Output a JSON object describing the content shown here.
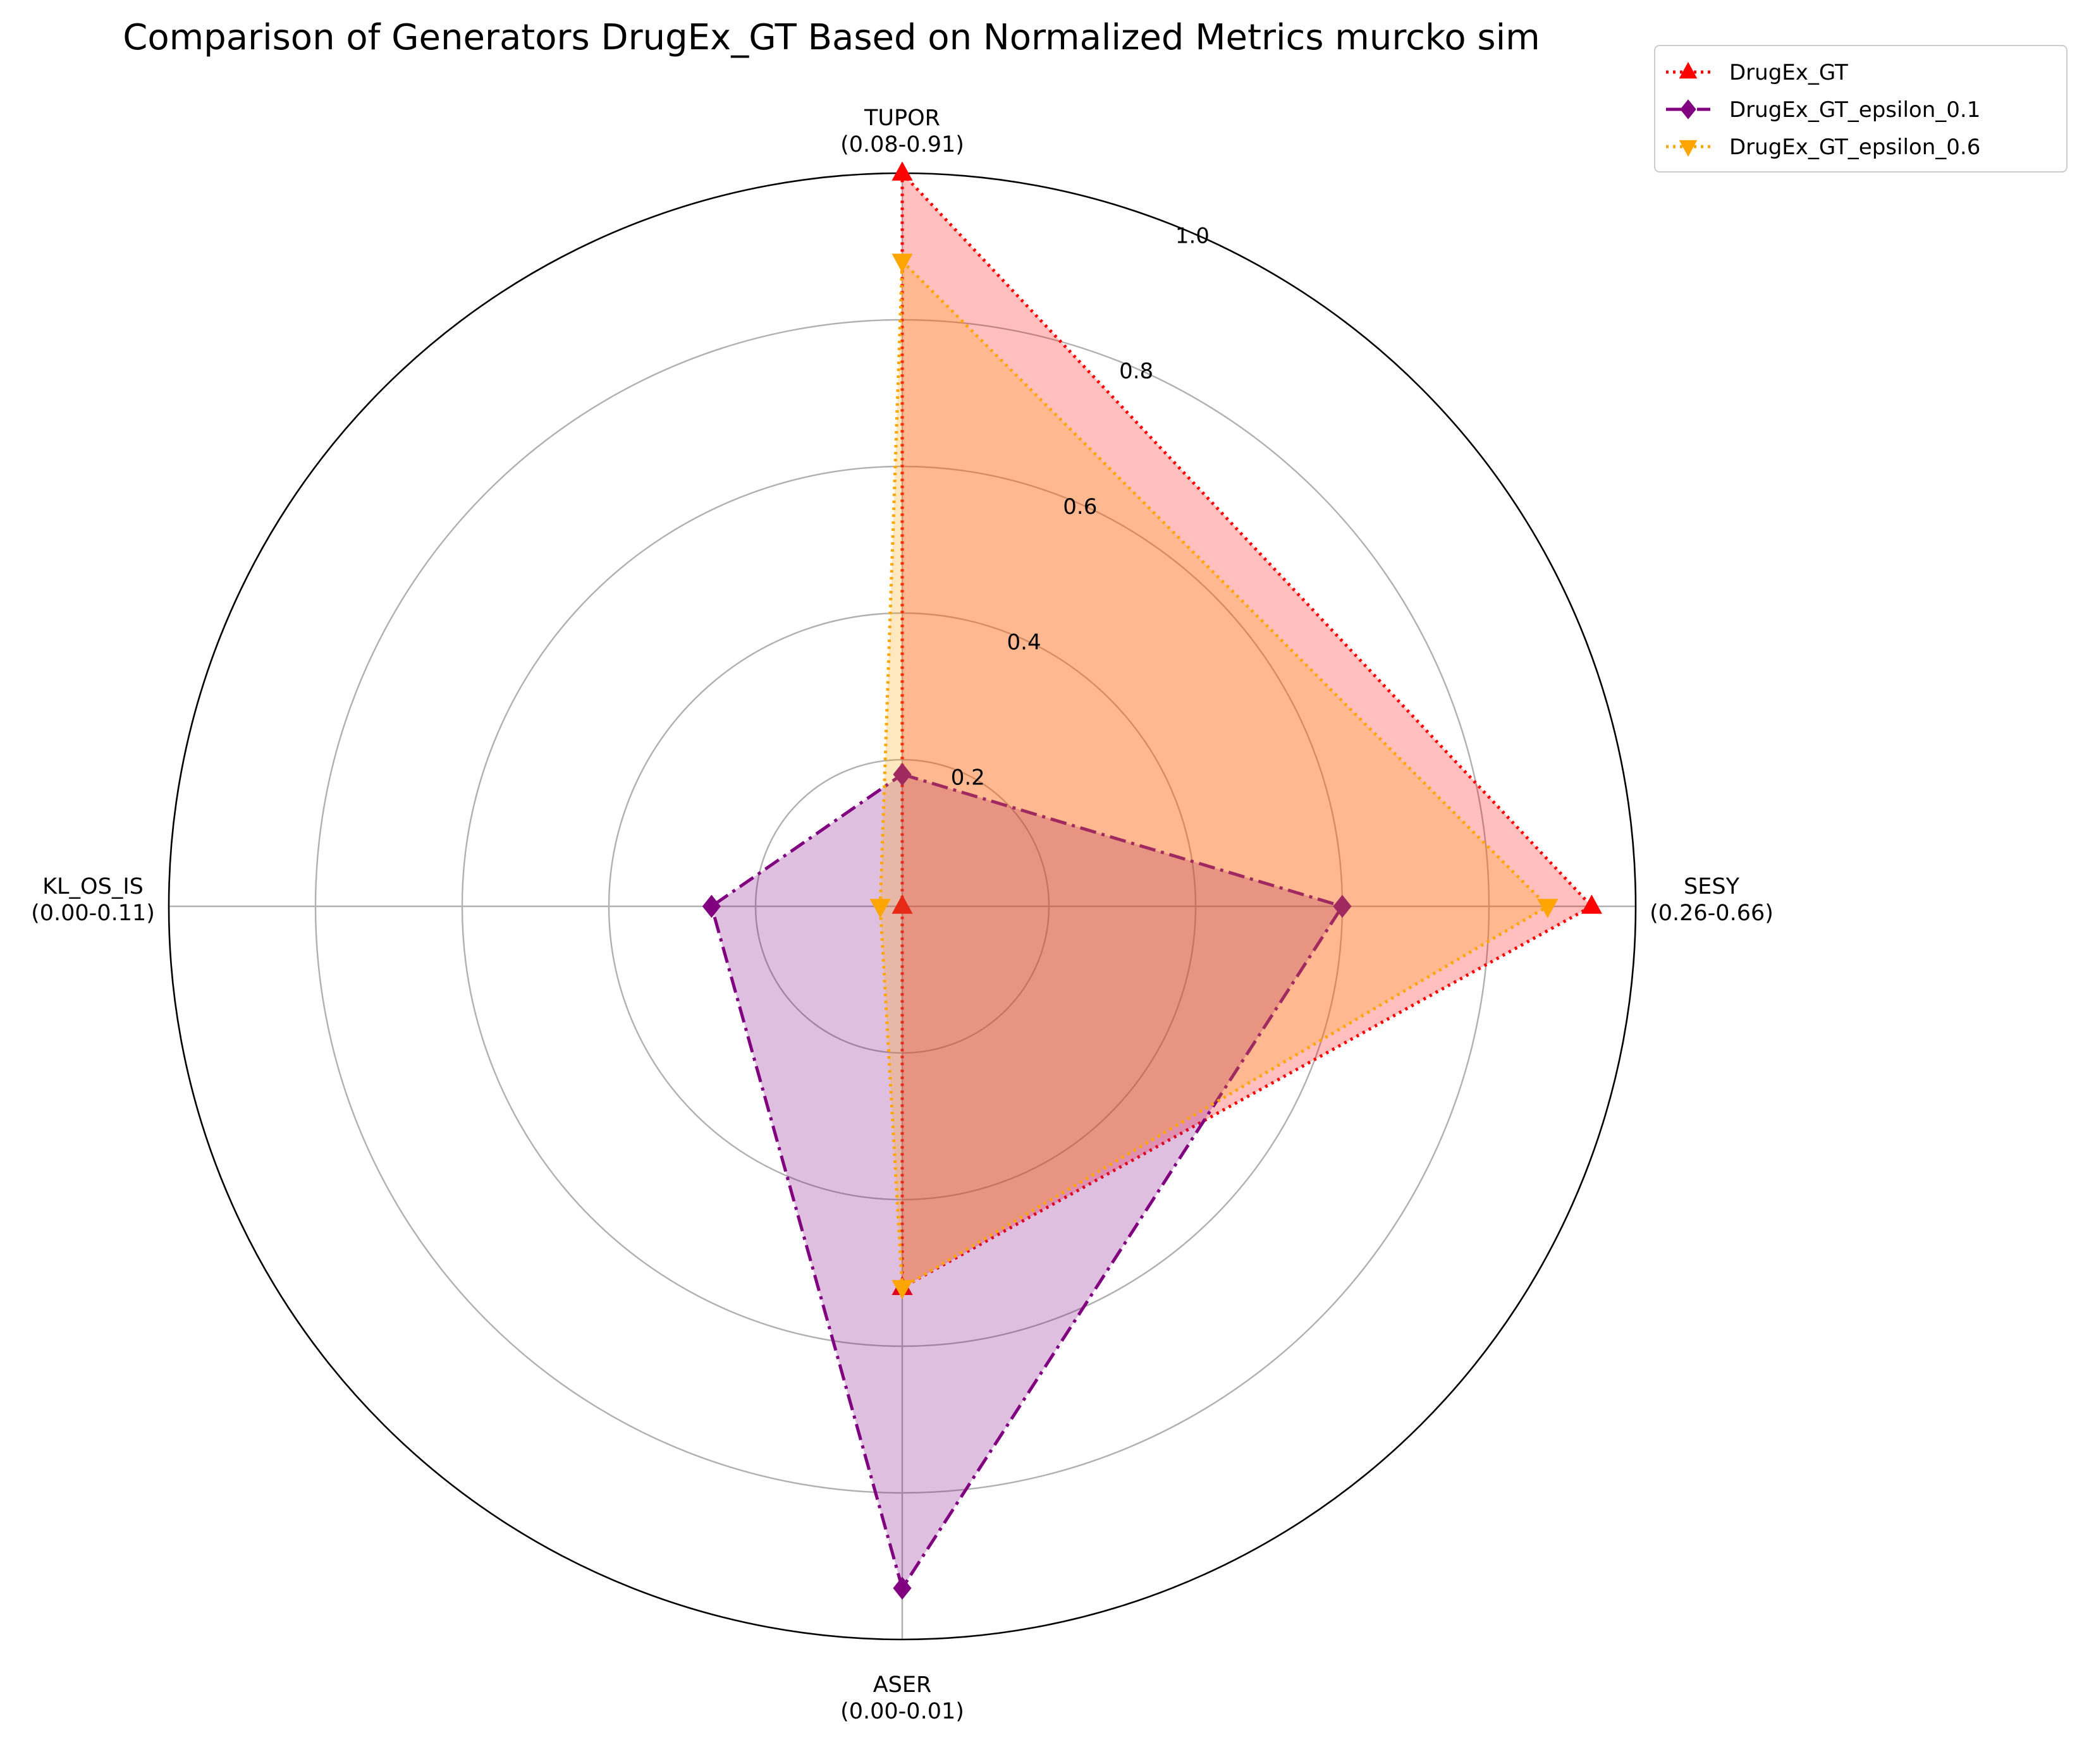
{
  "chart_data": {
    "type": "radar",
    "title": "Comparison of Generators DrugEx_GT Based on Normalized Metrics murcko sim",
    "axes": [
      {
        "name": "TUPOR",
        "range": "(0.08-0.91)"
      },
      {
        "name": "SESY",
        "range": "(0.26-0.66)"
      },
      {
        "name": "ASER",
        "range": "(0.00-0.01)"
      },
      {
        "name": "KL_OS_IS",
        "range": "(0.00-0.11)"
      }
    ],
    "radial_ticks": [
      "0.2",
      "0.4",
      "0.6",
      "0.8",
      "1.0"
    ],
    "radial_range": [
      0,
      1
    ],
    "grid": true,
    "legend_position": "top-right",
    "series": [
      {
        "name": "DrugEx_GT",
        "values": [
          1.0,
          0.94,
          0.52,
          0.0
        ],
        "color": "#ff0000",
        "fill": "#ff0000",
        "fill_opacity": 0.25,
        "dash": "dotted",
        "marker": "triangle-up"
      },
      {
        "name": "DrugEx_GT_epsilon_0.1",
        "values": [
          0.18,
          0.6,
          0.93,
          0.26
        ],
        "color": "#800080",
        "fill": "#800080",
        "fill_opacity": 0.25,
        "dash": "dashdot",
        "marker": "diamond"
      },
      {
        "name": "DrugEx_GT_epsilon_0.6",
        "values": [
          0.88,
          0.88,
          0.52,
          0.03
        ],
        "color": "#ffa500",
        "fill": "#ffa500",
        "fill_opacity": 0.25,
        "dash": "dotted",
        "marker": "triangle-down"
      }
    ]
  }
}
